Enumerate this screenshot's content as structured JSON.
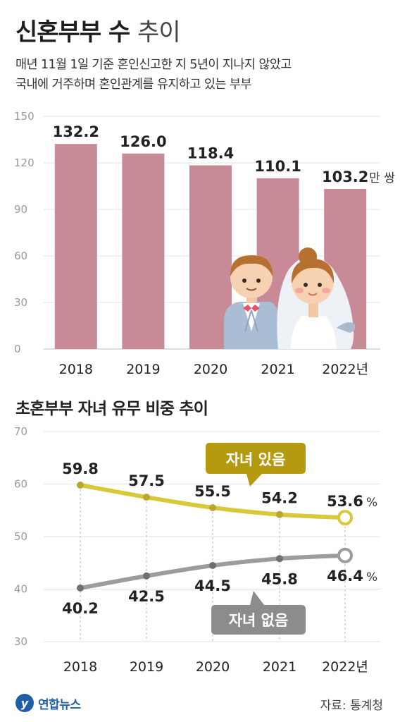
{
  "title_bold": "신혼부부 수",
  "title_light": "추이",
  "subtitle_lines": [
    "매년 11월 1일 기준 혼인신고한 지 5년이 지나지 않았고",
    "국내에 거주하며 혼인관계를 유지하고 있는 부부"
  ],
  "chart_data": [
    {
      "type": "bar",
      "categories": [
        "2018",
        "2019",
        "2020",
        "2021",
        "2022년"
      ],
      "values": [
        132.2,
        126.0,
        118.4,
        110.1,
        103.2
      ],
      "value_labels": [
        "132.2",
        "126.0",
        "118.4",
        "110.1",
        "103.2"
      ],
      "unit": "만 쌍",
      "yticks": [
        "0",
        "30",
        "60",
        "90",
        "120",
        "150"
      ],
      "ylim": [
        0,
        150
      ],
      "grid": true,
      "colors": {
        "bar": "#c98a98"
      }
    },
    {
      "type": "line",
      "title": "초혼부부 자녀 유무 비중 추이",
      "categories": [
        "2018",
        "2019",
        "2020",
        "2021",
        "2022년"
      ],
      "yticks": [
        "30",
        "40",
        "50",
        "60",
        "70"
      ],
      "ylim": [
        30,
        70
      ],
      "unit": "%",
      "series": [
        {
          "name": "자녀 있음",
          "values": [
            59.8,
            57.5,
            55.5,
            54.2,
            53.6
          ],
          "value_labels": [
            "59.8",
            "57.5",
            "55.5",
            "54.2",
            "53.6"
          ],
          "color": "#d9c83a",
          "label_color": "#b59a10"
        },
        {
          "name": "자녀 없음",
          "values": [
            40.2,
            42.5,
            44.5,
            45.8,
            46.4
          ],
          "value_labels": [
            "40.2",
            "42.5",
            "44.5",
            "45.8",
            "46.4"
          ],
          "color": "#9c9c9c",
          "label_color": "#8c8c8c"
        }
      ]
    }
  ],
  "logo_mark": "y",
  "logo_text": "연합뉴스",
  "source": "자료: 통계청",
  "illustration_icon": "wedding-couple-icon"
}
